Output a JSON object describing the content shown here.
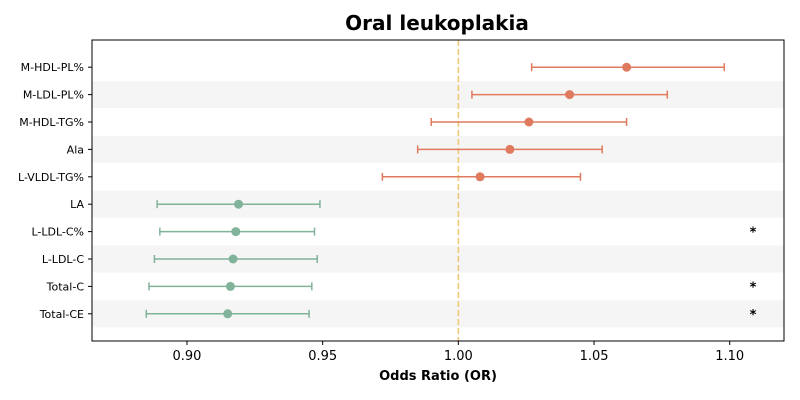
{
  "chart_data": {
    "type": "forest",
    "title": "Oral leukoplakia",
    "xlabel": "Odds Ratio (OR)",
    "xlim": [
      0.865,
      1.12
    ],
    "xticks": [
      "0.90",
      "0.95",
      "1.00",
      "1.05",
      "1.10"
    ],
    "xtick_values": [
      0.9,
      0.95,
      1.0,
      1.05,
      1.1
    ],
    "reference_line": 1.0,
    "reference_color": "#f0c97a",
    "band_color": "#f5f5f5",
    "colors": {
      "risk": "#e07a5f",
      "protective": "#81b29a"
    },
    "rows": [
      {
        "label": "M-HDL-PL%",
        "or": 1.062,
        "lower": 1.027,
        "upper": 1.098,
        "group": "risk",
        "mark": ""
      },
      {
        "label": "M-LDL-PL%",
        "or": 1.041,
        "lower": 1.005,
        "upper": 1.077,
        "group": "risk",
        "mark": ""
      },
      {
        "label": "M-HDL-TG%",
        "or": 1.026,
        "lower": 0.99,
        "upper": 1.062,
        "group": "risk",
        "mark": ""
      },
      {
        "label": "Ala",
        "or": 1.019,
        "lower": 0.985,
        "upper": 1.053,
        "group": "risk",
        "mark": ""
      },
      {
        "label": "L-VLDL-TG%",
        "or": 1.008,
        "lower": 0.972,
        "upper": 1.045,
        "group": "risk",
        "mark": ""
      },
      {
        "label": "LA",
        "or": 0.919,
        "lower": 0.889,
        "upper": 0.949,
        "group": "protective",
        "mark": ""
      },
      {
        "label": "L-LDL-C%",
        "or": 0.918,
        "lower": 0.89,
        "upper": 0.947,
        "group": "protective",
        "mark": "*"
      },
      {
        "label": "L-LDL-C",
        "or": 0.917,
        "lower": 0.888,
        "upper": 0.948,
        "group": "protective",
        "mark": ""
      },
      {
        "label": "Total-C",
        "or": 0.916,
        "lower": 0.886,
        "upper": 0.946,
        "group": "protective",
        "mark": "*"
      },
      {
        "label": "Total-CE",
        "or": 0.915,
        "lower": 0.885,
        "upper": 0.945,
        "group": "protective",
        "mark": "*"
      }
    ]
  }
}
